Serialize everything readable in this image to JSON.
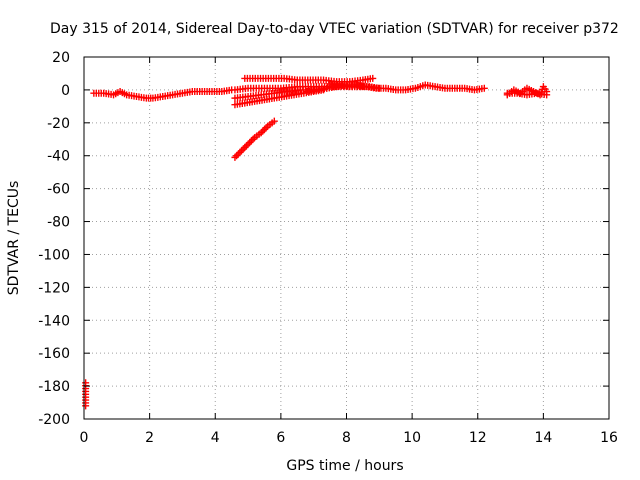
{
  "chart_data": {
    "type": "scatter",
    "title": "Day 315 of 2014, Sidereal Day-to-day VTEC variation (SDTVAR) for receiver p372",
    "xlabel": "GPS time / hours",
    "ylabel": "SDTVAR / TECUs",
    "xlim": [
      0,
      16
    ],
    "ylim": [
      -200,
      20
    ],
    "xticks": [
      0,
      2,
      4,
      6,
      8,
      10,
      12,
      14,
      16
    ],
    "yticks": [
      20,
      0,
      -20,
      -40,
      -60,
      -80,
      -100,
      -120,
      -140,
      -160,
      -180,
      -200
    ],
    "grid": true,
    "marker": "plus",
    "color": "#ff0000",
    "series": [
      {
        "x": [
          0.3,
          0.6,
          0.9,
          1.1,
          1.3,
          1.6,
          1.9,
          2.1,
          2.4,
          2.7,
          3.0,
          3.3,
          3.6,
          3.9,
          4.2,
          4.5
        ],
        "y": [
          -2,
          -2,
          -3,
          -1,
          -3,
          -4,
          -5,
          -5,
          -4,
          -3,
          -2,
          -1,
          -1,
          -1,
          -1,
          0
        ]
      },
      {
        "x": [
          4.6,
          4.8,
          5.0,
          5.2,
          5.4,
          5.6,
          5.8
        ],
        "y": [
          -41,
          -37,
          -33,
          -29,
          -26,
          -22,
          -19
        ]
      },
      {
        "x": [
          4.6,
          4.9,
          5.2,
          5.5,
          5.8,
          6.1,
          6.4,
          6.7,
          7.0,
          7.3
        ],
        "y": [
          -9,
          -8,
          -7,
          -6,
          -5,
          -4,
          -3,
          -2,
          -1,
          0
        ]
      },
      {
        "x": [
          4.6,
          5.0,
          5.4,
          5.8,
          6.2,
          6.6,
          7.0,
          7.4
        ],
        "y": [
          -5,
          -4,
          -3,
          -2,
          -1,
          0,
          0,
          1
        ]
      },
      {
        "x": [
          4.6,
          5.0,
          5.5,
          6.0,
          6.5,
          7.0,
          7.5,
          8.0,
          8.5
        ],
        "y": [
          0,
          1,
          1,
          1,
          2,
          2,
          2,
          2,
          2
        ]
      },
      {
        "x": [
          4.9,
          5.3,
          5.7,
          6.1,
          6.5,
          6.9,
          7.3,
          7.7,
          8.1,
          8.5,
          8.8
        ],
        "y": [
          7,
          7,
          7,
          7,
          6,
          6,
          6,
          5,
          5,
          6,
          7
        ]
      },
      {
        "x": [
          6.8,
          7.1,
          7.4,
          7.7,
          8.0,
          8.3,
          8.6,
          8.9,
          9.2,
          9.5,
          9.8,
          10.1,
          10.4,
          10.7,
          11.0,
          11.3,
          11.6,
          11.9,
          12.2
        ],
        "y": [
          -1,
          0,
          1,
          2,
          3,
          3,
          2,
          1,
          1,
          0,
          0,
          1,
          3,
          2,
          1,
          1,
          1,
          0,
          1
        ]
      },
      {
        "x": [
          7.5,
          7.8,
          8.1,
          8.4,
          8.7,
          9.0
        ],
        "y": [
          3,
          3,
          2,
          2,
          2,
          1
        ]
      },
      {
        "x": [
          12.9,
          13.1,
          13.3,
          13.5,
          13.7,
          13.9,
          14.0,
          14.1
        ],
        "y": [
          -3,
          0,
          -2,
          1,
          -1,
          -3,
          2,
          -1
        ]
      },
      {
        "x": [
          12.9,
          13.2,
          13.5,
          13.8,
          14.1
        ],
        "y": [
          -2,
          -2,
          -3,
          -2,
          -3
        ]
      },
      {
        "x": [
          0.05,
          0.05
        ],
        "y": [
          -178,
          -192
        ]
      }
    ]
  }
}
